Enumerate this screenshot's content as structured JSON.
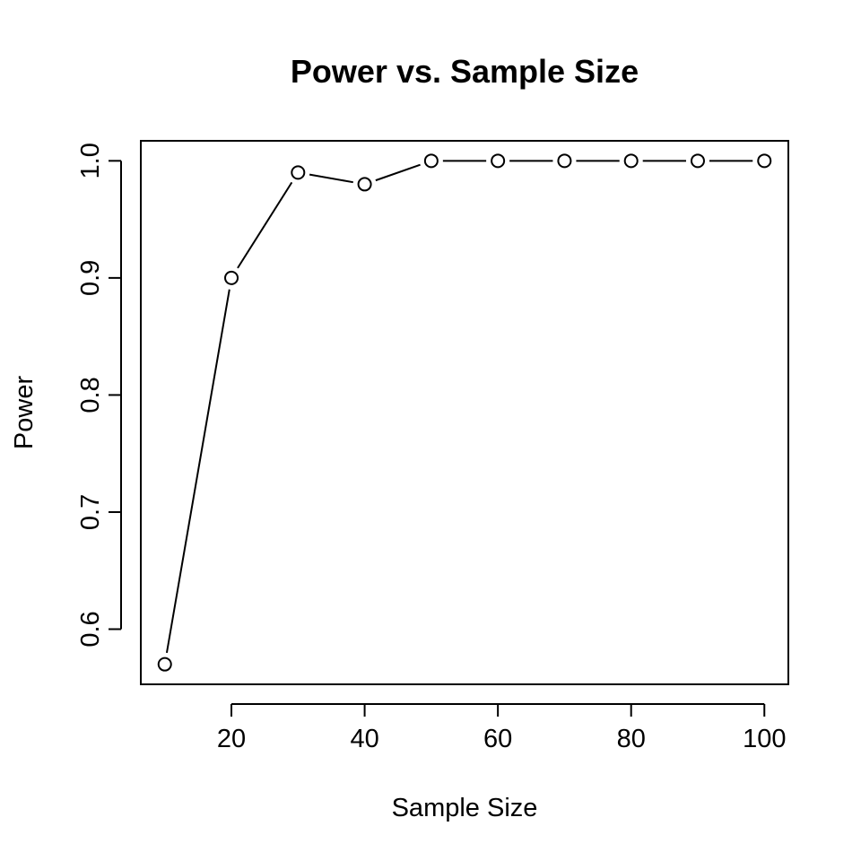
{
  "chart_data": {
    "type": "line",
    "title": "Power vs. Sample Size",
    "xlabel": "Sample Size",
    "ylabel": "Power",
    "x": [
      10,
      20,
      30,
      40,
      50,
      60,
      70,
      80,
      90,
      100
    ],
    "y": [
      0.57,
      0.9,
      0.99,
      0.98,
      1.0,
      1.0,
      1.0,
      1.0,
      1.0,
      1.0
    ],
    "xlim": [
      6.4,
      103.6
    ],
    "ylim": [
      0.5529,
      1.0171
    ],
    "xticks": [
      20,
      40,
      60,
      80,
      100
    ],
    "xtick_labels": [
      "20",
      "40",
      "60",
      "80",
      "100"
    ],
    "yticks": [
      0.6,
      0.7,
      0.8,
      0.9,
      1.0
    ],
    "ytick_labels": [
      "0.6",
      "0.7",
      "0.8",
      "0.9",
      "1.0"
    ],
    "marker": "open-circle",
    "line_color": "#000000",
    "grid": false,
    "legend": "none"
  }
}
